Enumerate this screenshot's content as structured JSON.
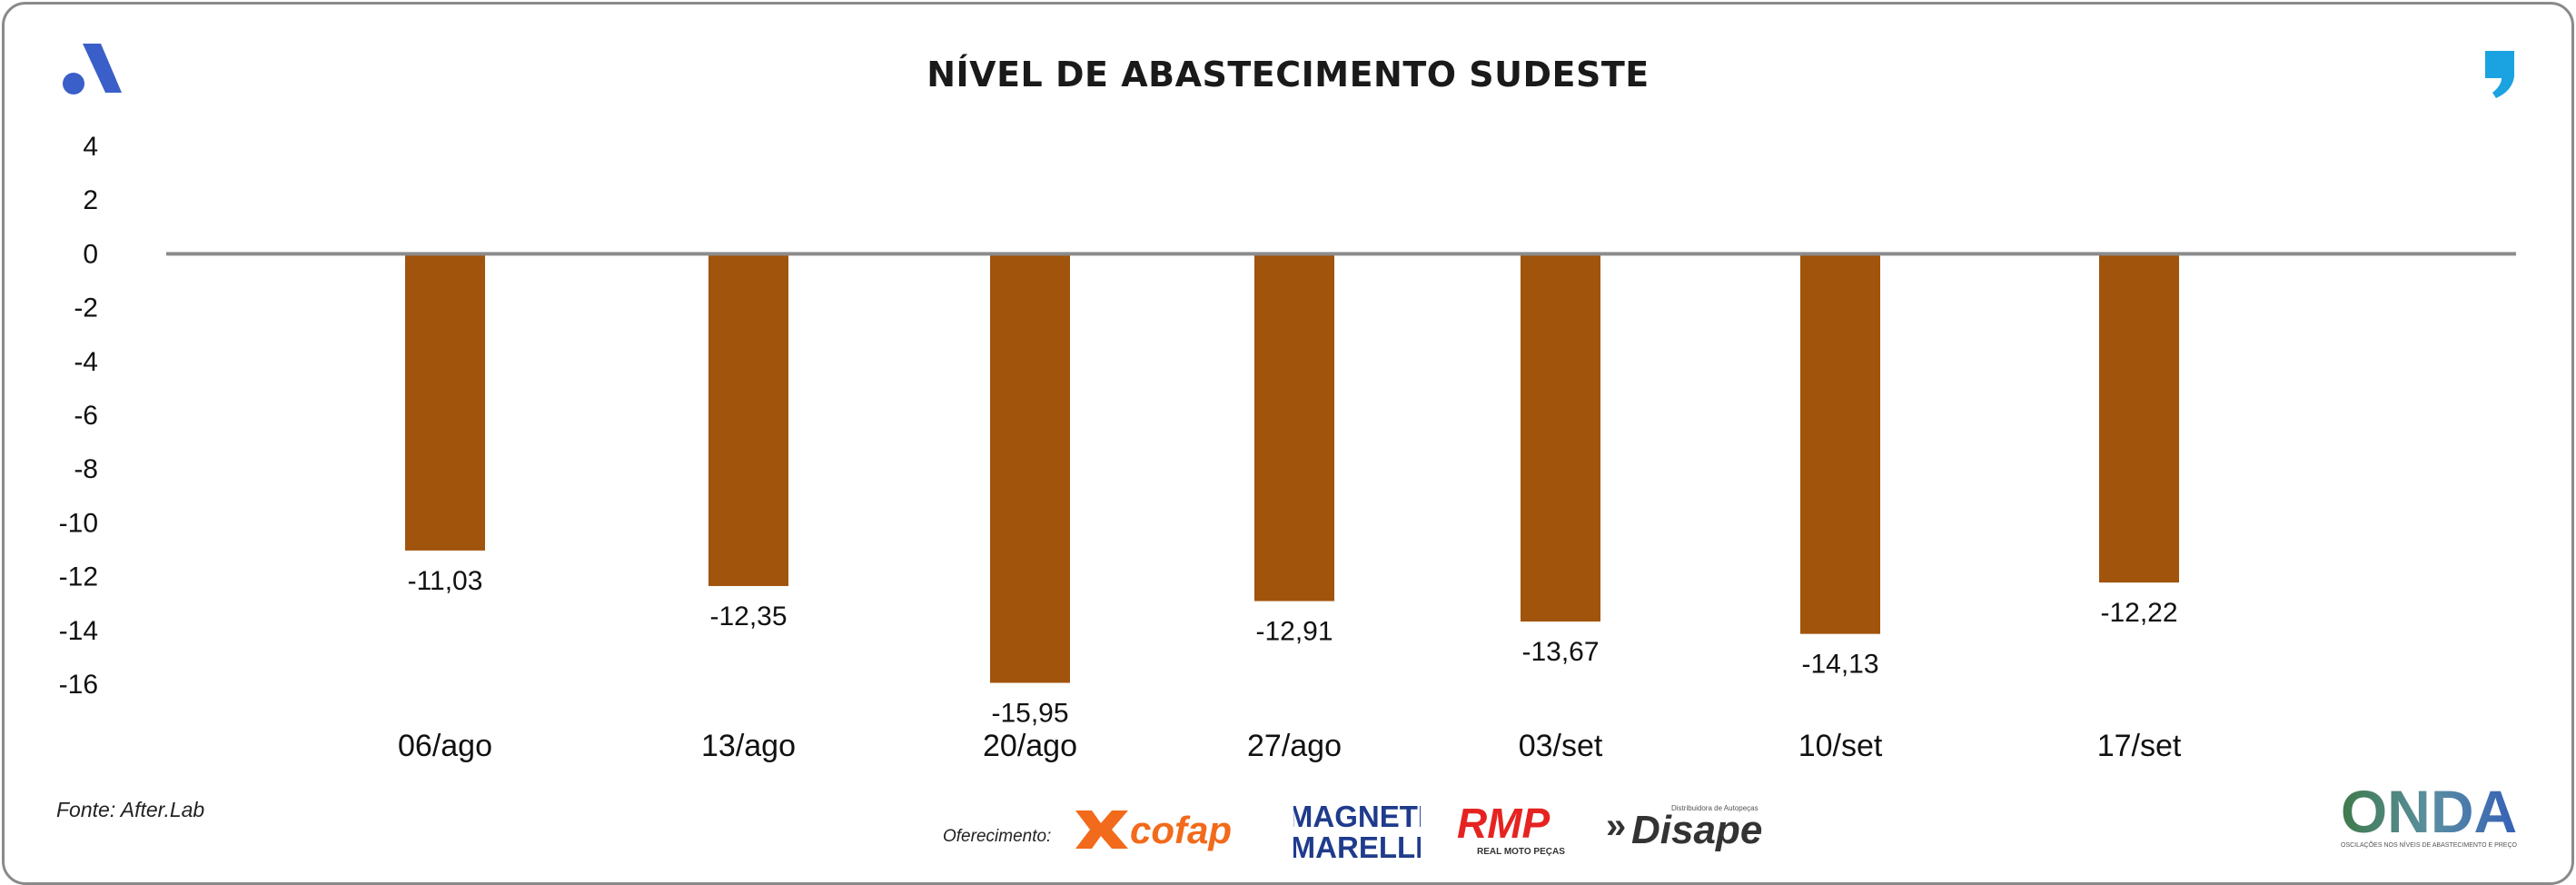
{
  "title": "NÍVEL DE ABASTECIMENTO SUDESTE",
  "source": "Fonte: After.Lab",
  "sponsor_label": "Oferecimento:",
  "logos": {
    "cofap": "cofap",
    "magneti_line1": "MAGNETI",
    "magneti_line2": "MARELLI",
    "rmp": "RMP",
    "rmp_sub": "REAL MOTO PEÇAS",
    "disape": "Disape",
    "disape_prefix": "»",
    "disape_sub": "Distribuidora de Autopeças",
    "onda": "ONDA",
    "onda_sub": "OSCILAÇÕES NOS NÍVEIS DE ABASTECIMENTO E PREÇO"
  },
  "colors": {
    "bar": "#A0540C",
    "zero_line": "#8c8c8c",
    "brand_blue": "#3a5fc8",
    "accent_cyan": "#1aa3e0"
  },
  "chart_data": {
    "type": "bar",
    "title": "NÍVEL DE ABASTECIMENTO SUDESTE",
    "categories": [
      "06/ago",
      "13/ago",
      "20/ago",
      "27/ago",
      "03/set",
      "10/set",
      "17/set"
    ],
    "values": [
      -11.03,
      -12.35,
      -15.95,
      -12.91,
      -13.67,
      -14.13,
      -12.22
    ],
    "value_labels": [
      "-11,03",
      "-12,35",
      "-15,95",
      "-12,91",
      "-13,67",
      "-14,13",
      "-12,22"
    ],
    "yticks": [
      4,
      2,
      0,
      -2,
      -4,
      -6,
      -8,
      -10,
      -12,
      -14,
      -16
    ],
    "ytick_labels": [
      "4",
      "2",
      "0",
      "-2",
      "-4",
      "-6",
      "-8",
      "-10",
      "-12",
      "-14",
      "-16"
    ],
    "ylim": [
      -16,
      4
    ],
    "xlabel": "",
    "ylabel": "",
    "grid": false,
    "legend": "none"
  }
}
